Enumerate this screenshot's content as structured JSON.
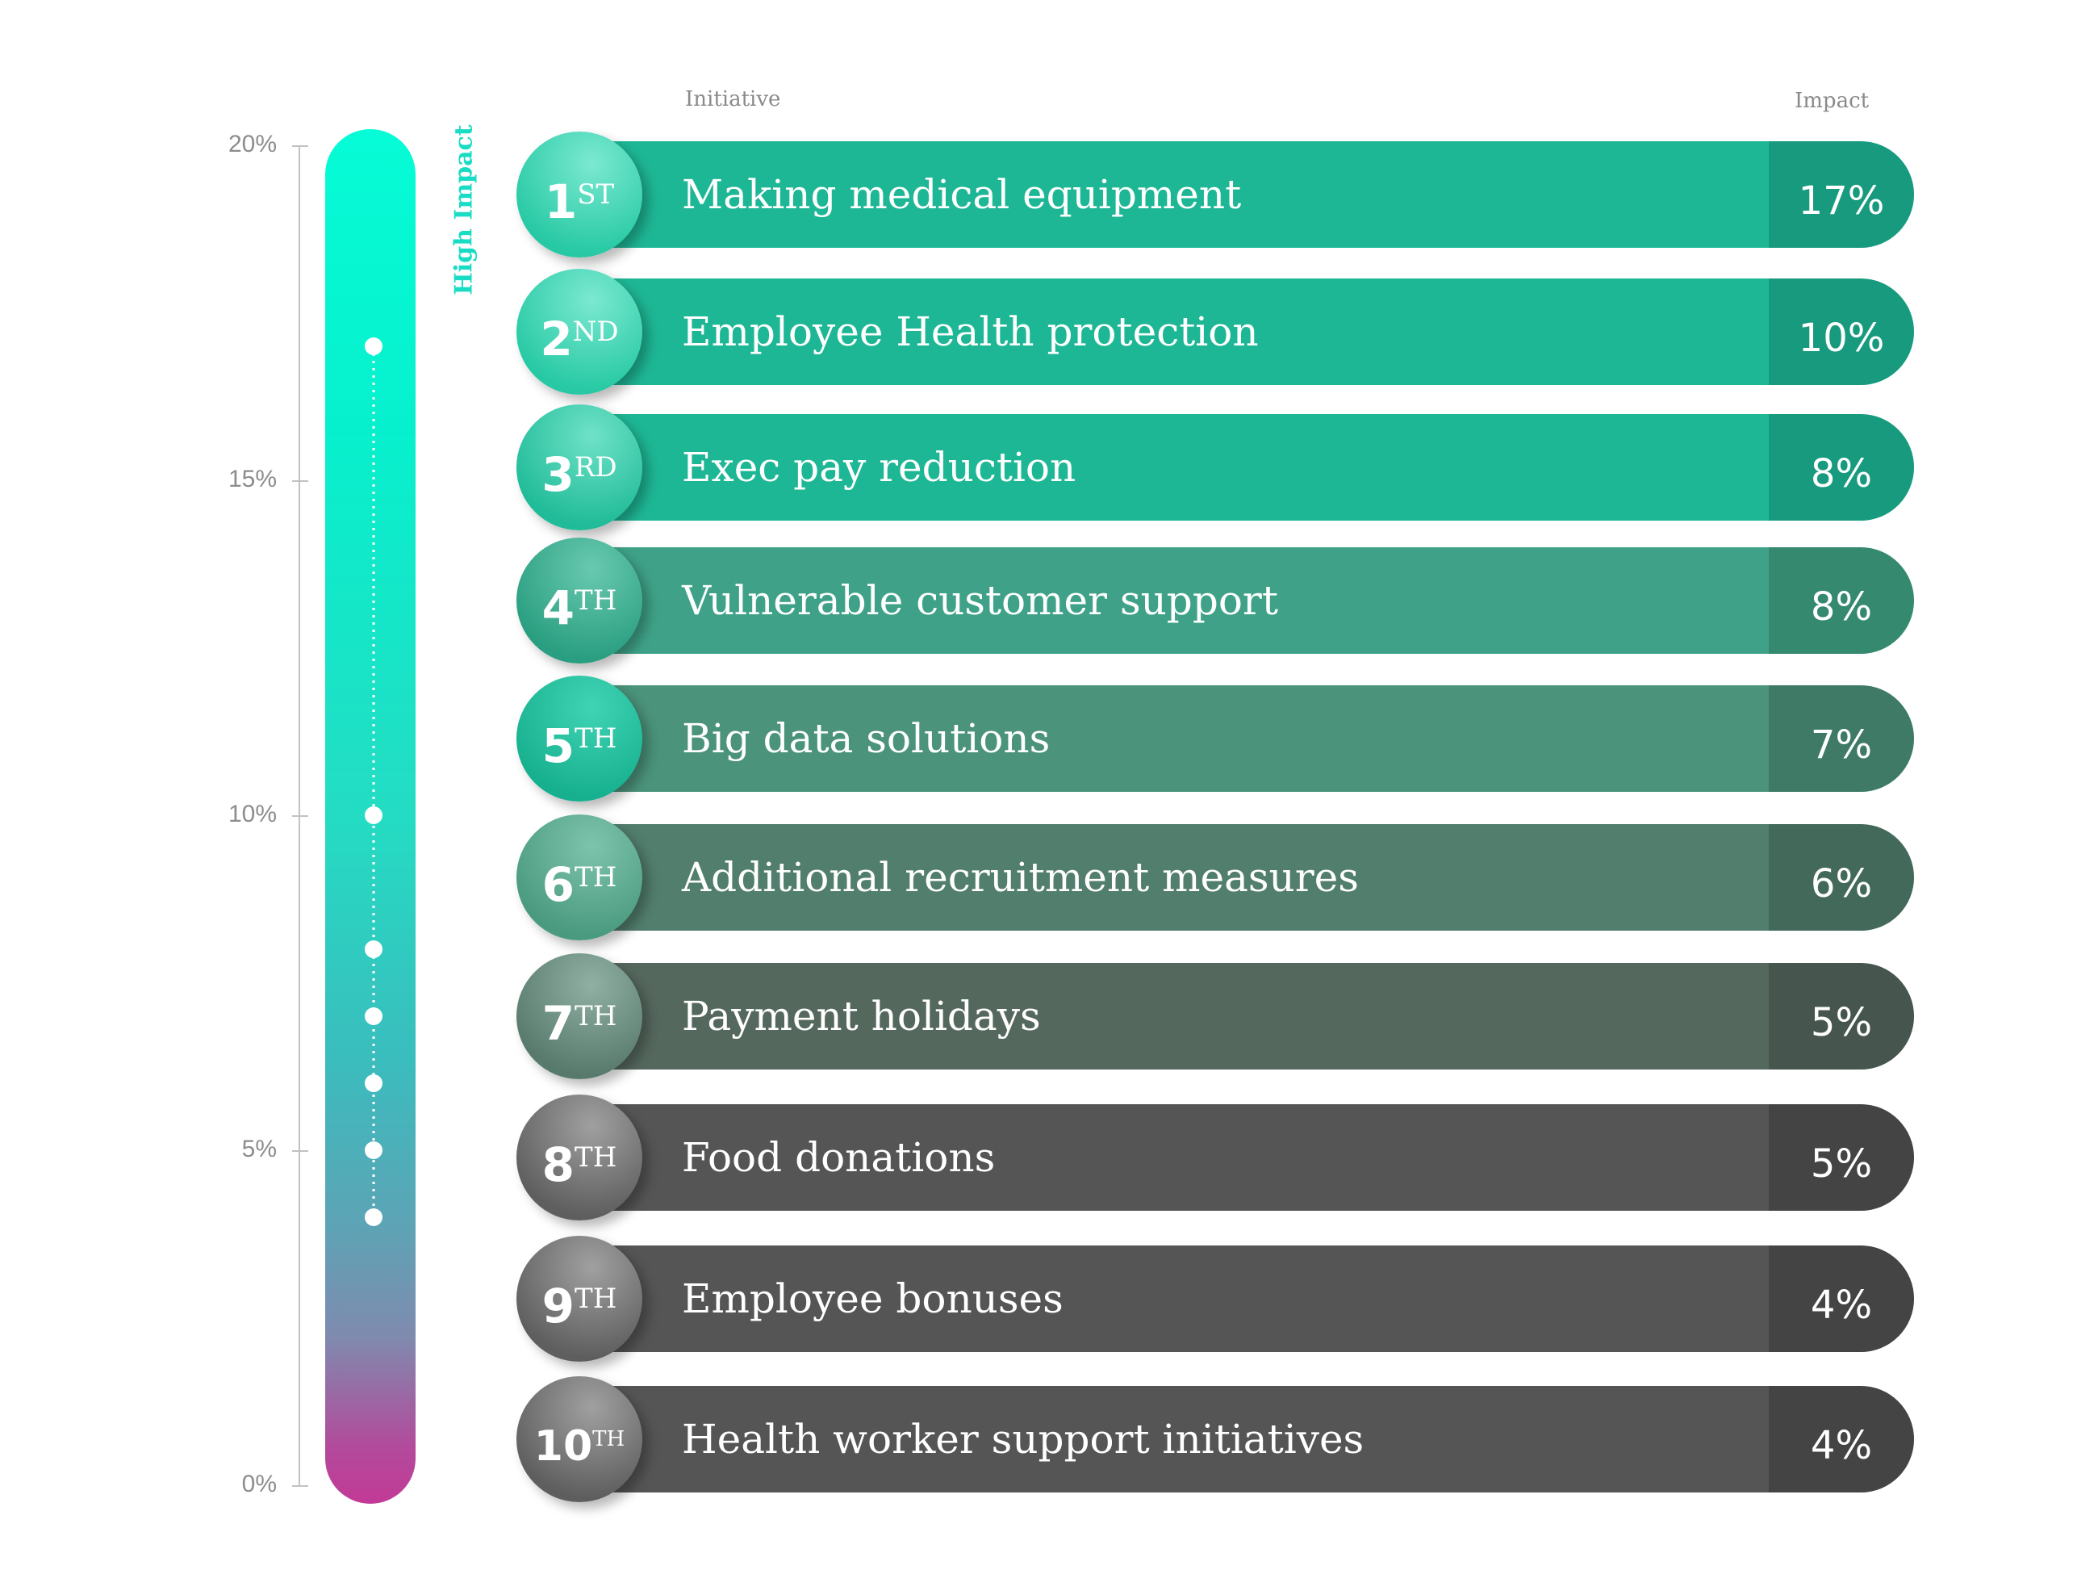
{
  "headers": {
    "initiative": "Initiative",
    "impact": "Impact"
  },
  "scale": {
    "caption": "High Impact",
    "ticks": [
      "20%",
      "15%",
      "10%",
      "5%",
      "0%"
    ],
    "tick_values": [
      20,
      15,
      10,
      5,
      0
    ],
    "gradient": [
      "#06fcd6",
      "#c23a96"
    ]
  },
  "chart_data": {
    "type": "bar",
    "xlabel": "Initiative",
    "ylabel": "Impact",
    "ylim": [
      0,
      20
    ],
    "grid": false,
    "categories": [
      "Making medical equipment",
      "Employee Health protection",
      "Exec pay reduction",
      "Vulnerable customer support",
      "Big data solutions",
      "Additional recruitment measures",
      "Payment holidays",
      "Food donations",
      "Employee bonuses",
      "Health worker support initiatives"
    ],
    "values": [
      17,
      10,
      8,
      8,
      7,
      6,
      5,
      5,
      4,
      4
    ],
    "rows": [
      {
        "rank": "1",
        "suffix": "ST",
        "label": "Making medical equipment",
        "value_label": "17%",
        "value": 17,
        "color": "#1eb795",
        "value_color": "#179a7e",
        "badge_light": "#7be9d1",
        "badge_dark": "#27c9a4"
      },
      {
        "rank": "2",
        "suffix": "ND",
        "label": "Employee Health protection",
        "value_label": "10%",
        "value": 10,
        "color": "#1eb795",
        "value_color": "#179a7e",
        "badge_light": "#7be9d1",
        "badge_dark": "#27c9a4"
      },
      {
        "rank": "3",
        "suffix": "RD",
        "label": "Exec pay reduction",
        "value_label": "8%",
        "value": 8,
        "color": "#1eb795",
        "value_color": "#179a7e",
        "badge_light": "#6fe2c8",
        "badge_dark": "#20bb98"
      },
      {
        "rank": "4",
        "suffix": "TH",
        "label": "Vulnerable customer support",
        "value_label": "8%",
        "value": 8,
        "color": "#3fa288",
        "value_color": "#34896f",
        "badge_light": "#68c9b0",
        "badge_dark": "#2a9e80"
      },
      {
        "rank": "5",
        "suffix": "TH",
        "label": "Big data solutions",
        "value_label": "7%",
        "value": 7,
        "color": "#4b937b",
        "value_color": "#3e7a66",
        "badge_light": "#3fd4b4",
        "badge_dark": "#17b08f"
      },
      {
        "rank": "6",
        "suffix": "TH",
        "label": "Additional recruitment measures",
        "value_label": "6%",
        "value": 6,
        "color": "#527e6d",
        "value_color": "#43695a",
        "badge_light": "#7ec4ac",
        "badge_dark": "#4a9a80"
      },
      {
        "rank": "7",
        "suffix": "TH",
        "label": "Payment holidays",
        "value_label": "5%",
        "value": 5,
        "color": "#55685e",
        "value_color": "#46564e",
        "badge_light": "#8fb0a2",
        "badge_dark": "#587a6c"
      },
      {
        "rank": "8",
        "suffix": "TH",
        "label": "Food donations",
        "value_label": "5%",
        "value": 5,
        "color": "#555555",
        "value_color": "#444444",
        "badge_light": "#a0a0a0",
        "badge_dark": "#5e5e5e"
      },
      {
        "rank": "9",
        "suffix": "TH",
        "label": "Employee bonuses",
        "value_label": "4%",
        "value": 4,
        "color": "#555555",
        "value_color": "#444444",
        "badge_light": "#a0a0a0",
        "badge_dark": "#5e5e5e"
      },
      {
        "rank": "10",
        "suffix": "TH",
        "label": "Health worker support initiatives",
        "value_label": "4%",
        "value": 4,
        "color": "#555555",
        "value_color": "#444444",
        "badge_light": "#a0a0a0",
        "badge_dark": "#5e5e5e"
      }
    ]
  }
}
